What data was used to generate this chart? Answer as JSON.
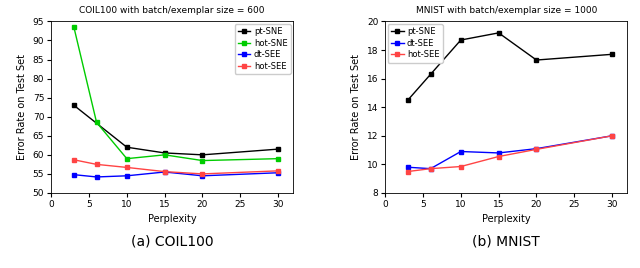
{
  "coil100": {
    "title": "COIL100 with batch/exemplar size = 600",
    "xlabel": "Perplexity",
    "ylabel": "Error Rate on Test Set",
    "xlim": [
      0,
      32
    ],
    "ylim": [
      50,
      95
    ],
    "yticks": [
      50,
      55,
      60,
      65,
      70,
      75,
      80,
      85,
      90,
      95
    ],
    "xticks": [
      0,
      5,
      10,
      15,
      20,
      25,
      30
    ],
    "perplexity": [
      3,
      6,
      10,
      15,
      20,
      30
    ],
    "pt_SNE": [
      73.0,
      null,
      62.0,
      60.5,
      60.0,
      61.5
    ],
    "hot_SNE": [
      93.5,
      68.5,
      59.0,
      60.0,
      58.5,
      59.0
    ],
    "dt_SEE": [
      54.8,
      54.2,
      54.5,
      55.5,
      54.5,
      55.3
    ],
    "hot_SEE": [
      58.7,
      57.5,
      56.7,
      55.6,
      55.0,
      55.8
    ],
    "legend": [
      "pt-SNE",
      "hot-SNE",
      "dt-SEE",
      "hot-SEE"
    ],
    "colors": [
      "#000000",
      "#00cc00",
      "#0000ff",
      "#ff4444"
    ],
    "caption": "(a) COIL100"
  },
  "mnist": {
    "title": "MNIST with batch/exemplar size = 1000",
    "xlabel": "Perplexity",
    "ylabel": "Error Rate on Test Set",
    "xlim": [
      0,
      32
    ],
    "ylim": [
      8,
      20
    ],
    "yticks": [
      8,
      10,
      12,
      14,
      16,
      18,
      20
    ],
    "xticks": [
      0,
      5,
      10,
      15,
      20,
      25,
      30
    ],
    "perplexity": [
      3,
      6,
      10,
      15,
      20,
      30
    ],
    "pt_SNE": [
      14.5,
      16.3,
      18.7,
      19.2,
      17.3,
      17.7
    ],
    "dt_SEE": [
      9.8,
      9.7,
      10.9,
      10.8,
      11.1,
      12.0
    ],
    "hot_SEE": [
      9.5,
      9.7,
      9.85,
      10.55,
      11.05,
      12.0
    ],
    "legend": [
      "pt-SNE",
      "dt-SEE",
      "hot-SEE"
    ],
    "colors": [
      "#000000",
      "#0000ff",
      "#ff4444"
    ],
    "caption": "(b) MNIST"
  }
}
